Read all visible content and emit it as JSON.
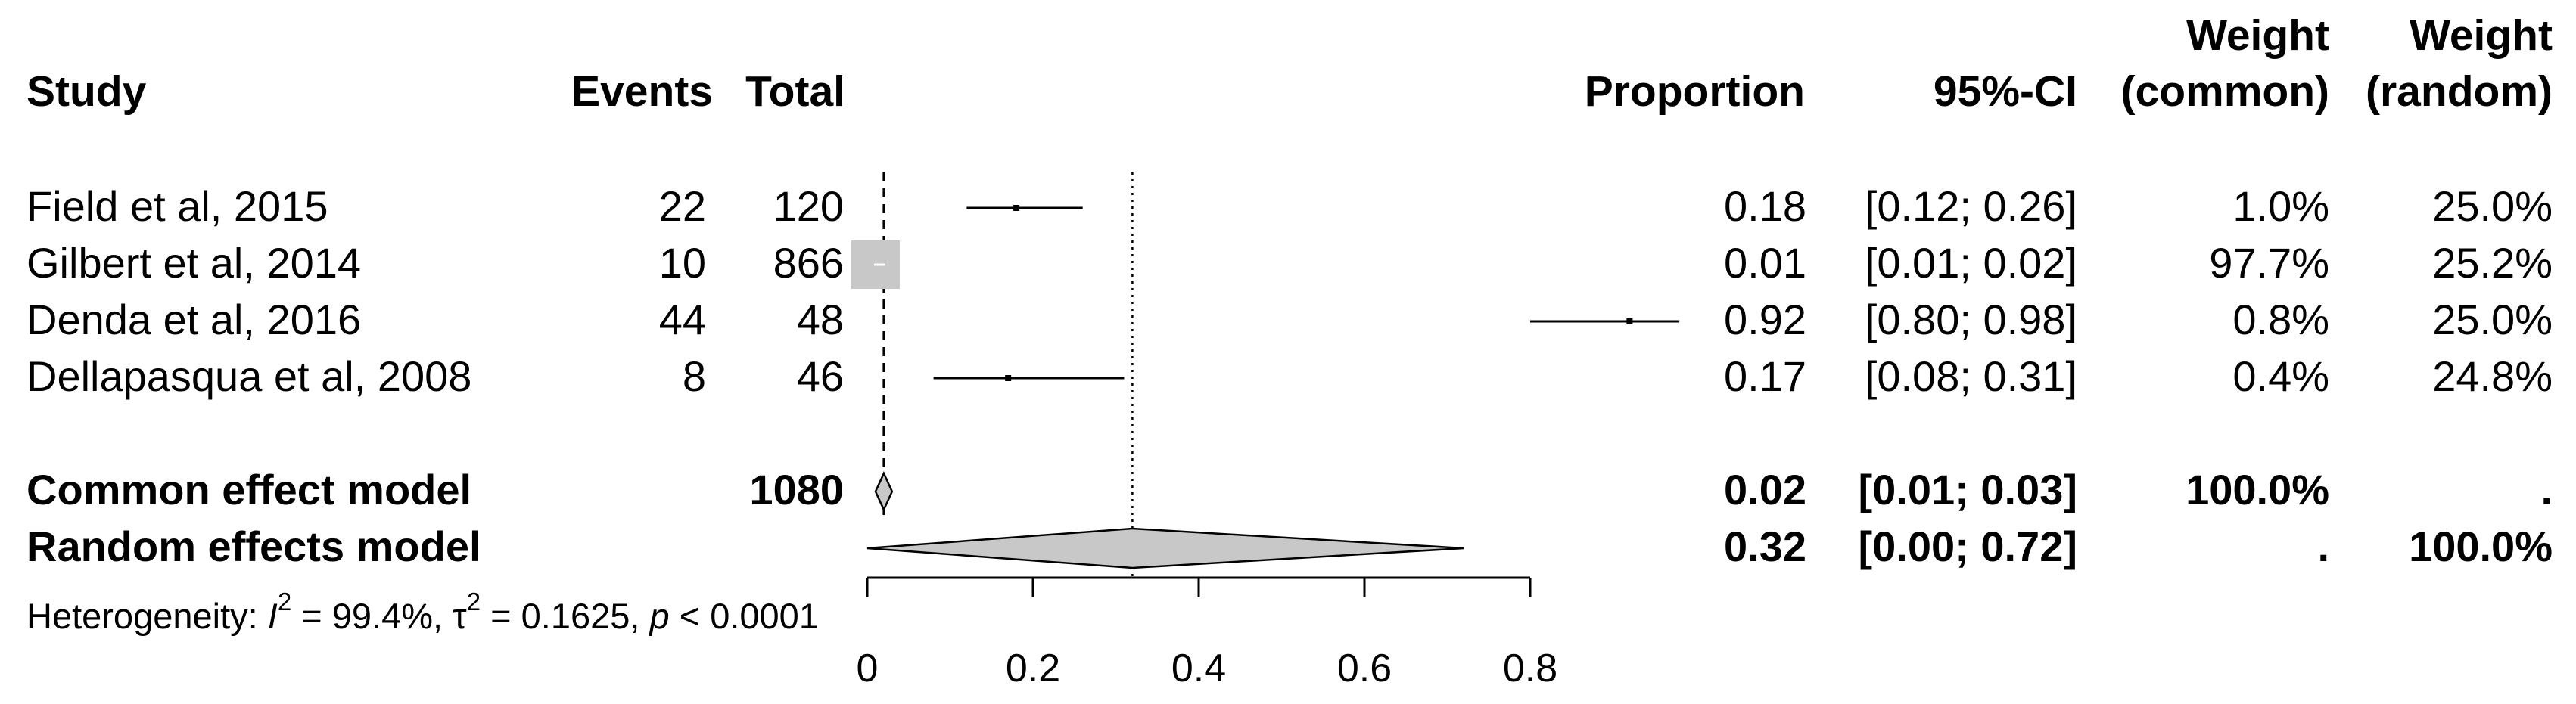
{
  "chart_data": {
    "type": "forest",
    "columns": {
      "study": "Study",
      "events": "Events",
      "total": "Total",
      "proportion": "Proportion",
      "ci": "95%-CI",
      "weight_common": [
        "Weight",
        "(common)"
      ],
      "weight_random": [
        "Weight",
        "(random)"
      ]
    },
    "studies": [
      {
        "name": "Field et al, 2015",
        "events": "22",
        "total": "120",
        "proportion": 0.18,
        "ci_low": 0.12,
        "ci_high": 0.26,
        "proportion_text": "0.18",
        "ci_text": "[0.12; 0.26]",
        "weight_common": "1.0%",
        "weight_random": "25.0%"
      },
      {
        "name": "Gilbert et al, 2014",
        "events": "10",
        "total": "866",
        "proportion": 0.01,
        "ci_low": 0.01,
        "ci_high": 0.02,
        "proportion_text": "0.01",
        "ci_text": "[0.01; 0.02]",
        "weight_common": "97.7%",
        "weight_random": "25.2%"
      },
      {
        "name": "Denda et al, 2016",
        "events": "44",
        "total": "48",
        "proportion": 0.92,
        "ci_low": 0.8,
        "ci_high": 0.98,
        "proportion_text": "0.92",
        "ci_text": "[0.80; 0.98]",
        "weight_common": "0.8%",
        "weight_random": "25.0%"
      },
      {
        "name": "Dellapasqua et al, 2008",
        "events": "8",
        "total": "46",
        "proportion": 0.17,
        "ci_low": 0.08,
        "ci_high": 0.31,
        "proportion_text": "0.17",
        "ci_text": "[0.08; 0.31]",
        "weight_common": "0.4%",
        "weight_random": "24.8%"
      }
    ],
    "summaries": [
      {
        "name": "Common effect model",
        "total": "1080",
        "proportion": 0.02,
        "ci_low": 0.01,
        "ci_high": 0.03,
        "proportion_text": "0.02",
        "ci_text": "[0.01; 0.03]",
        "weight_common": "100.0%",
        "weight_random": "."
      },
      {
        "name": "Random effects model",
        "total": "",
        "proportion": 0.32,
        "ci_low": 0.0,
        "ci_high": 0.72,
        "proportion_text": "0.32",
        "ci_text": "[0.00; 0.72]",
        "weight_common": ".",
        "weight_random": "100.0%"
      }
    ],
    "heterogeneity": {
      "prefix": "Heterogeneity: ",
      "i2_symbol": "I",
      "i2_text": " = 99.4%, ",
      "tau2_symbol": "τ",
      "tau2_text": " = 0.1625, ",
      "p_symbol": "p",
      "p_text": " < 0.0001",
      "superscript": "2"
    },
    "x_axis": {
      "ticks": [
        0,
        0.2,
        0.4,
        0.6,
        0.8
      ],
      "tick_labels": [
        "0",
        "0.2",
        "0.4",
        "0.6",
        "0.8"
      ],
      "xlim": [
        0,
        0.8
      ]
    },
    "reference_lines": {
      "common": 0.02,
      "random": 0.32
    },
    "colors": {
      "ink": "#000000",
      "box": "#c8c8c8",
      "diamond": "#c8c8c8"
    }
  }
}
